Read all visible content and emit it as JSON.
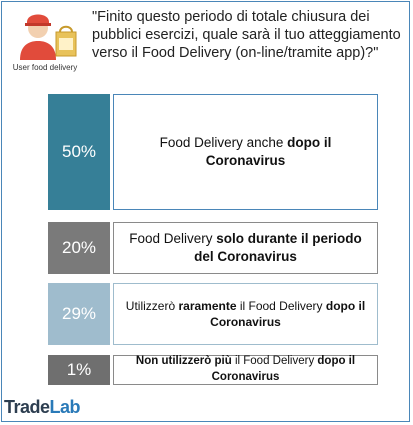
{
  "header": {
    "icon_label": "User food delivery",
    "question": "\"Finito questo periodo di totale chiusura dei pubblici esercizi, quale sarà il tuo atteggiamento verso il Food Delivery (on-line/tramite app)?\""
  },
  "chart_data": {
    "type": "bar",
    "categories": [
      "Food Delivery anche dopo il Coronavirus",
      "Food Delivery solo durante il periodo del Coronavirus",
      "Utilizzerò raramente il Food Delivery dopo il Coronavirus",
      "Non utilizzerò più il Food Delivery dopo il Coronavirus"
    ],
    "values": [
      50,
      20,
      29,
      1
    ],
    "labels": [
      "50%",
      "20%",
      "29%",
      "1%"
    ],
    "colors": [
      "#367f97",
      "#7a7a7a",
      "#9fbccd",
      "#6f6f6f"
    ],
    "rows": [
      {
        "pct": "50%",
        "segments": [
          {
            "t": "Food Delivery anche ",
            "b": false
          },
          {
            "t": "dopo il Coronavirus",
            "b": true
          }
        ]
      },
      {
        "pct": "20%",
        "segments": [
          {
            "t": "Food Delivery ",
            "b": false
          },
          {
            "t": "solo durante il periodo del Coronavirus",
            "b": true
          }
        ]
      },
      {
        "pct": "29%",
        "segments": [
          {
            "t": "Utilizzerò ",
            "b": false
          },
          {
            "t": "raramente",
            "b": true
          },
          {
            "t": " il Food Delivery ",
            "b": false
          },
          {
            "t": "dopo il Coronavirus",
            "b": true
          }
        ]
      },
      {
        "pct": "1%",
        "segments": [
          {
            "t": "Non utilizzerò più",
            "b": true
          },
          {
            "t": " il Food Delivery ",
            "b": false
          },
          {
            "t": "dopo il Coronavirus",
            "b": true
          }
        ]
      }
    ]
  },
  "footer": {
    "logo_trade": "Trade",
    "logo_lab": "Lab"
  }
}
